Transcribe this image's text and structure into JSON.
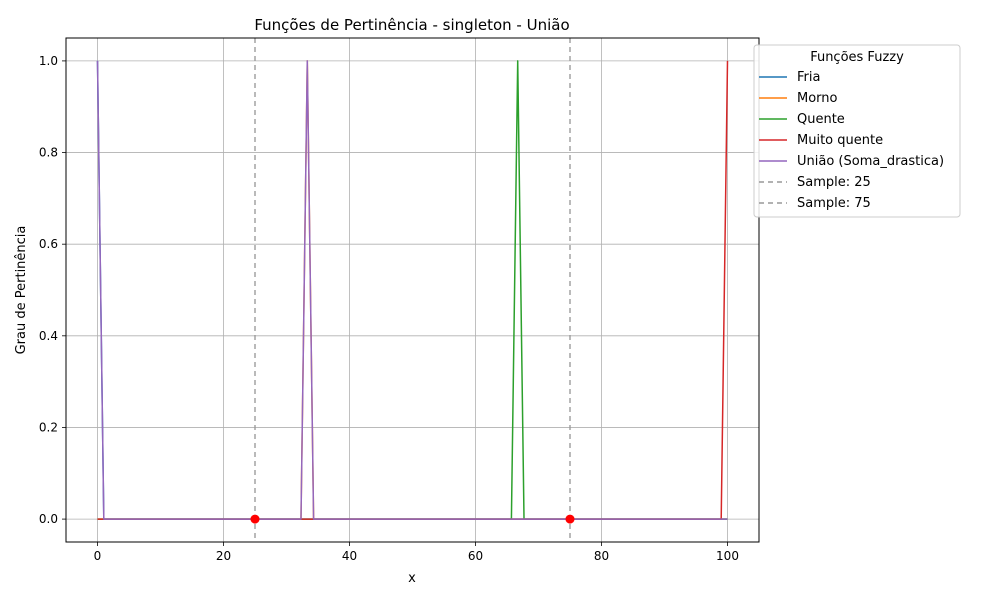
{
  "chart_data": {
    "type": "line",
    "title": "Funções de Pertinência - singleton - União",
    "xlabel": "x",
    "ylabel": "Grau de Pertinência",
    "xlim": [
      -5,
      105
    ],
    "ylim": [
      -0.05,
      1.05
    ],
    "x_ticks": [
      0,
      20,
      40,
      60,
      80,
      100
    ],
    "y_ticks": [
      0.0,
      0.2,
      0.4,
      0.6,
      0.8,
      1.0
    ],
    "x_tick_labels": [
      "0",
      "20",
      "40",
      "60",
      "80",
      "100"
    ],
    "y_tick_labels": [
      "0.0",
      "0.2",
      "0.4",
      "0.6",
      "0.8",
      "1.0"
    ],
    "grid": true,
    "legend": {
      "title": "Funções Fuzzy",
      "placement": "outside top-right"
    },
    "series": [
      {
        "name": "Fria",
        "color": "#1f77b4",
        "style": "solid",
        "points": [
          [
            0,
            1.0
          ],
          [
            1,
            0.0
          ],
          [
            100,
            0.0
          ]
        ]
      },
      {
        "name": "Morno",
        "color": "#ff7f0e",
        "style": "solid",
        "points": [
          [
            0,
            0.0
          ],
          [
            32.3,
            0.0
          ],
          [
            33.3,
            1.0
          ],
          [
            34.3,
            0.0
          ],
          [
            100,
            0.0
          ]
        ]
      },
      {
        "name": "Quente",
        "color": "#2ca02c",
        "style": "solid",
        "points": [
          [
            0,
            0.0
          ],
          [
            65.7,
            0.0
          ],
          [
            66.7,
            1.0
          ],
          [
            67.7,
            0.0
          ],
          [
            100,
            0.0
          ]
        ]
      },
      {
        "name": "Muito quente",
        "color": "#d62728",
        "style": "solid",
        "points": [
          [
            0,
            0.0
          ],
          [
            99,
            0.0
          ],
          [
            100,
            1.0
          ]
        ]
      },
      {
        "name": "União (Soma_drastica)",
        "color": "#9467bd",
        "style": "solid",
        "points": [
          [
            0,
            1.0
          ],
          [
            1,
            0.0
          ],
          [
            32.3,
            0.0
          ],
          [
            33.3,
            1.0
          ],
          [
            34.3,
            0.0
          ],
          [
            100,
            0.0
          ]
        ]
      },
      {
        "name": "Sample: 25",
        "color": "#999999",
        "style": "dashed",
        "vline": 25
      },
      {
        "name": "Sample: 75",
        "color": "#999999",
        "style": "dashed",
        "vline": 75
      }
    ],
    "markers": [
      {
        "x": 25,
        "y": 0.0,
        "color": "#ff0000"
      },
      {
        "x": 75,
        "y": 0.0,
        "color": "#ff0000"
      }
    ]
  }
}
